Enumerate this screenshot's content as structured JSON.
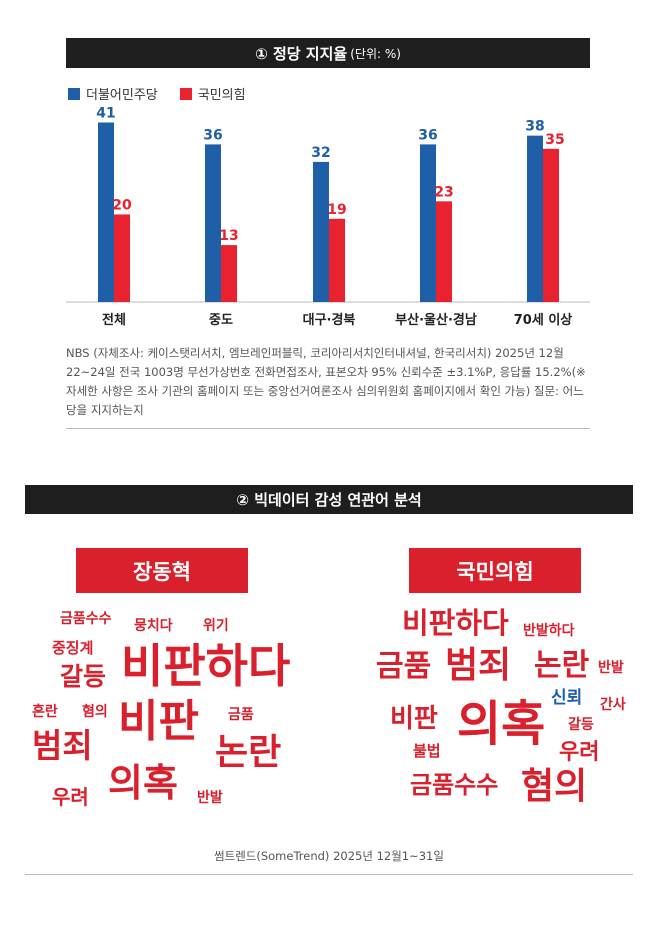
{
  "section1": {
    "title": "① 정당 지지율",
    "unit": "(단위: %)"
  },
  "legend": [
    {
      "name": "더불어민주당",
      "color": "#1f5fa8"
    },
    {
      "name": "국민의힘",
      "color": "#e8232f"
    }
  ],
  "chart_data": {
    "type": "bar",
    "categories": [
      "전체",
      "중도",
      "대구·경북",
      "부산·울산·경남",
      "70세 이상"
    ],
    "series": [
      {
        "name": "더불어민주당",
        "color": "#1f5fa8",
        "values": [
          41,
          36,
          32,
          36,
          38
        ]
      },
      {
        "name": "국민의힘",
        "color": "#e8232f",
        "values": [
          20,
          13,
          19,
          23,
          35
        ]
      }
    ],
    "ylim": [
      0,
      45
    ],
    "legend_position": "top-left",
    "grid": false
  },
  "note": "NBS (자체조사: 케이스탯리서치, 엠브레인퍼블릭, 코리아리서치인터내셔널, 한국리서치) 2025년 12월22~24일 전국 1003명 무선가상번호 전화면접조사, 표본오차 95% 신뢰수준 ±3.1%P, 응답률 15.2%(※자세한 사항은 조사 기관의 홈페이지 또는 중앙선거여론조사 심의위원회 홈페이지에서 확인 가능) 질문: 어느 당을 지지하는지",
  "section2": {
    "title": "② 빅데이터 감성 연관어 분석"
  },
  "clouds": {
    "jang": {
      "label": "장동혁",
      "words": [
        "금품수수",
        "뭉치다",
        "위기",
        "중징계",
        "갈등",
        "비판하다",
        "혼란",
        "혐의",
        "비판",
        "금품",
        "범죄",
        "논란",
        "우려",
        "의혹",
        "반발"
      ]
    },
    "ppp": {
      "label": "국민의힘",
      "words": [
        "비판하다",
        "반발하다",
        "금품",
        "범죄",
        "논란",
        "반발",
        "신뢰",
        "간사",
        "비판",
        "의혹",
        "갈등",
        "불법",
        "우려",
        "금품수수",
        "혐의"
      ]
    }
  },
  "source": "썸트렌드(SomeTrend) 2025년 12월1~31일"
}
